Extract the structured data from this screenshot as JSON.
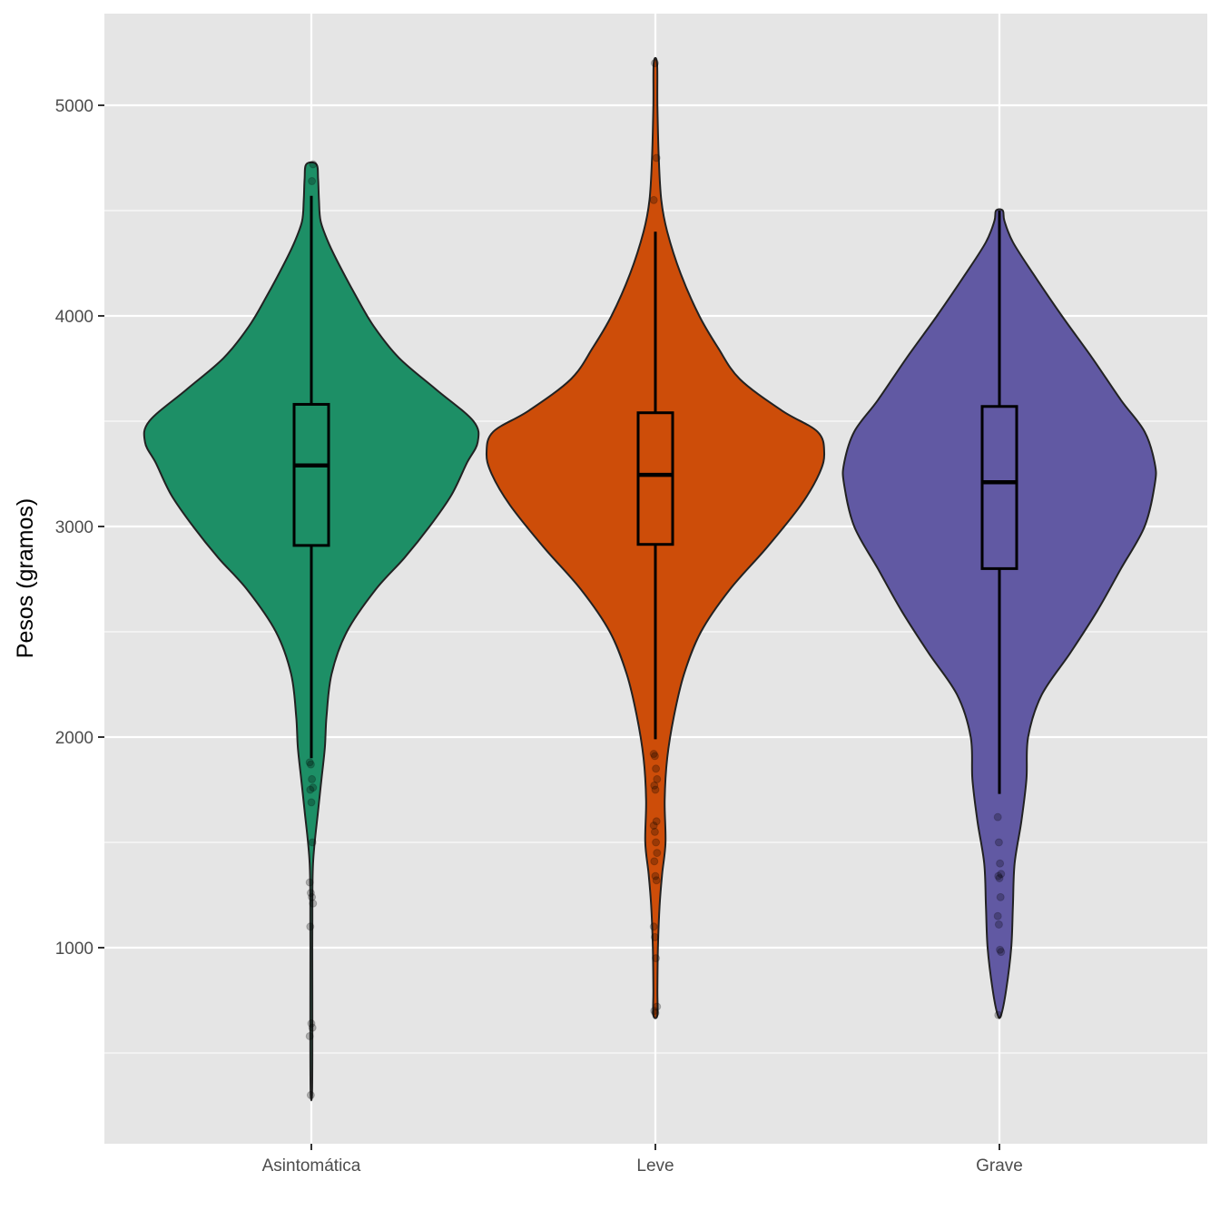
{
  "chart_data": {
    "type": "violin",
    "title": "",
    "xlabel": "",
    "ylabel": "Pesos (gramos)",
    "ylim": [
      250,
      5450
    ],
    "y_ticks": [
      1000,
      2000,
      3000,
      4000,
      5000
    ],
    "y_ticks_labels": [
      "1000",
      "2000",
      "3000",
      "4000",
      "5000"
    ],
    "categories": [
      "Asintomática",
      "Leve",
      "Grave"
    ],
    "legend": "none",
    "grid": true,
    "panel_background": "#e5e5e5",
    "series": [
      {
        "category": "Asintomática",
        "color": "#1d8f66",
        "min": 300,
        "max": 4720,
        "box": {
          "whisker_low": 1900,
          "q1": 2910,
          "median": 3290,
          "q3": 3580,
          "whisker_high": 4570
        },
        "density": [
          [
            300,
            0.004
          ],
          [
            500,
            0.006
          ],
          [
            800,
            0.006
          ],
          [
            1100,
            0.006
          ],
          [
            1400,
            0.01
          ],
          [
            1650,
            0.04
          ],
          [
            1800,
            0.06
          ],
          [
            1950,
            0.08
          ],
          [
            2100,
            0.09
          ],
          [
            2300,
            0.12
          ],
          [
            2500,
            0.21
          ],
          [
            2700,
            0.38
          ],
          [
            2850,
            0.55
          ],
          [
            3000,
            0.7
          ],
          [
            3150,
            0.83
          ],
          [
            3300,
            0.92
          ],
          [
            3400,
            0.985
          ],
          [
            3500,
            0.96
          ],
          [
            3650,
            0.74
          ],
          [
            3800,
            0.52
          ],
          [
            3950,
            0.37
          ],
          [
            4100,
            0.26
          ],
          [
            4250,
            0.16
          ],
          [
            4350,
            0.1
          ],
          [
            4450,
            0.055
          ],
          [
            4550,
            0.045
          ],
          [
            4650,
            0.04
          ],
          [
            4720,
            0.03
          ]
        ],
        "outliers": [
          1880,
          1870,
          1800,
          1760,
          1750,
          1690,
          1500,
          1310,
          1260,
          1240,
          1210,
          1100,
          640,
          620,
          580,
          300,
          4640,
          4720
        ]
      },
      {
        "category": "Leve",
        "color": "#cd4d09",
        "min": 680,
        "max": 5200,
        "box": {
          "whisker_low": 1990,
          "q1": 2915,
          "median": 3245,
          "q3": 3540,
          "whisker_high": 4400
        },
        "density": [
          [
            680,
            0.012
          ],
          [
            800,
            0.012
          ],
          [
            1000,
            0.015
          ],
          [
            1200,
            0.025
          ],
          [
            1350,
            0.04
          ],
          [
            1500,
            0.06
          ],
          [
            1700,
            0.055
          ],
          [
            1900,
            0.07
          ],
          [
            2100,
            0.11
          ],
          [
            2300,
            0.17
          ],
          [
            2500,
            0.27
          ],
          [
            2700,
            0.44
          ],
          [
            2900,
            0.66
          ],
          [
            3100,
            0.86
          ],
          [
            3250,
            0.97
          ],
          [
            3350,
            1.0
          ],
          [
            3450,
            0.96
          ],
          [
            3550,
            0.75
          ],
          [
            3700,
            0.5
          ],
          [
            3850,
            0.37
          ],
          [
            4000,
            0.26
          ],
          [
            4200,
            0.15
          ],
          [
            4400,
            0.07
          ],
          [
            4550,
            0.035
          ],
          [
            4750,
            0.02
          ],
          [
            5000,
            0.012
          ],
          [
            5200,
            0.01
          ]
        ],
        "outliers": [
          1920,
          1910,
          1850,
          1800,
          1770,
          1750,
          1600,
          1580,
          1550,
          1500,
          1450,
          1410,
          1340,
          1320,
          1100,
          1050,
          950,
          720,
          700,
          690,
          4750,
          4550,
          5200
        ]
      },
      {
        "category": "Grave",
        "color": "#6159a3",
        "min": 680,
        "max": 4500,
        "box": {
          "whisker_low": 1730,
          "q1": 2800,
          "median": 3210,
          "q3": 3570,
          "whisker_high": 4500
        },
        "density": [
          [
            680,
            0.01
          ],
          [
            800,
            0.04
          ],
          [
            1000,
            0.07
          ],
          [
            1200,
            0.08
          ],
          [
            1400,
            0.09
          ],
          [
            1600,
            0.13
          ],
          [
            1800,
            0.16
          ],
          [
            2000,
            0.17
          ],
          [
            2200,
            0.25
          ],
          [
            2400,
            0.42
          ],
          [
            2600,
            0.58
          ],
          [
            2800,
            0.72
          ],
          [
            3000,
            0.86
          ],
          [
            3200,
            0.92
          ],
          [
            3300,
            0.92
          ],
          [
            3450,
            0.86
          ],
          [
            3600,
            0.72
          ],
          [
            3800,
            0.55
          ],
          [
            4000,
            0.37
          ],
          [
            4200,
            0.2
          ],
          [
            4350,
            0.08
          ],
          [
            4450,
            0.03
          ],
          [
            4500,
            0.02
          ]
        ],
        "outliers": [
          1620,
          1500,
          1400,
          1350,
          1340,
          1330,
          1240,
          1150,
          1110,
          990,
          980,
          680
        ]
      }
    ]
  }
}
